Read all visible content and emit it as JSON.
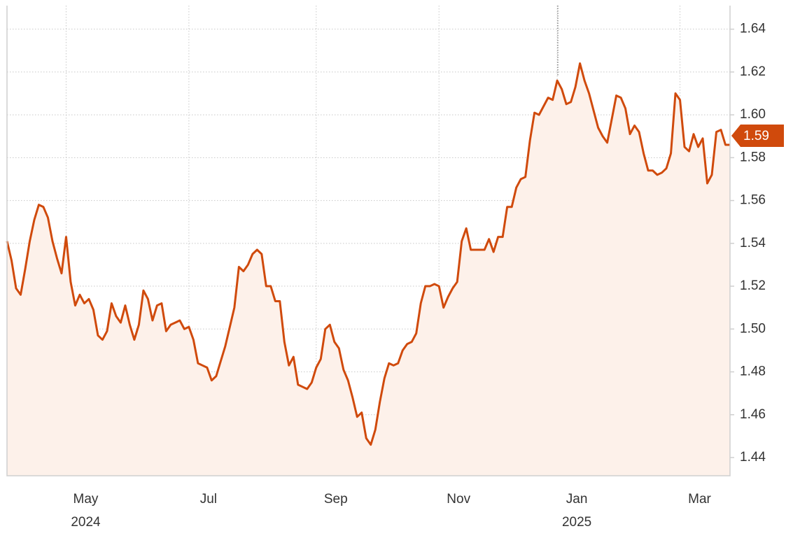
{
  "chart_data": {
    "type": "line",
    "color": "#d04a0c",
    "fill_color": "#fdf1ea",
    "grid": true,
    "current_label": "1.59",
    "categories": [
      null,
      null,
      null,
      null,
      null,
      null,
      null,
      null,
      null,
      null,
      null,
      null,
      null,
      "May",
      null,
      null,
      null,
      null,
      null,
      null,
      null,
      null,
      null,
      null,
      null,
      null,
      null,
      null,
      null,
      null,
      null,
      null,
      null,
      null,
      null,
      null,
      null,
      null,
      null,
      null,
      "Jul",
      null,
      null,
      null,
      null,
      null,
      null,
      null,
      null,
      null,
      null,
      null,
      null,
      null,
      null,
      null,
      null,
      null,
      null,
      null,
      null,
      null,
      null,
      null,
      null,
      null,
      null,
      null,
      "Sep",
      null,
      null,
      null,
      null,
      null,
      null,
      null,
      null,
      null,
      null,
      null,
      null,
      null,
      null,
      null,
      null,
      null,
      null,
      null,
      null,
      null,
      null,
      null,
      null,
      null,
      null,
      "Nov",
      null,
      null,
      null,
      null,
      null,
      null,
      null,
      null,
      null,
      null,
      null,
      null,
      null,
      null,
      null,
      null,
      null,
      null,
      null,
      null,
      null,
      null,
      null,
      null,
      null,
      "Jan",
      null,
      null,
      null,
      null,
      null,
      null,
      null,
      null,
      null,
      null,
      null,
      null,
      null,
      null,
      null,
      null,
      null,
      null,
      null,
      null,
      null,
      null,
      null,
      null,
      null,
      null,
      "Mar",
      null,
      null,
      null,
      null,
      null,
      null,
      null,
      null,
      null,
      null,
      null
    ],
    "category_years": [
      null,
      null,
      null,
      null,
      null,
      null,
      null,
      null,
      null,
      null,
      null,
      null,
      null,
      "2024",
      null,
      null,
      null,
      null,
      null,
      null,
      null,
      null,
      null,
      null,
      null,
      null,
      null,
      null,
      null,
      null,
      null,
      null,
      null,
      null,
      null,
      null,
      null,
      null,
      null,
      null,
      null,
      null,
      null,
      null,
      null,
      null,
      null,
      null,
      null,
      null,
      null,
      null,
      null,
      null,
      null,
      null,
      null,
      null,
      null,
      null,
      null,
      null,
      null,
      null,
      null,
      null,
      null,
      null,
      null,
      null,
      null,
      null,
      null,
      null,
      null,
      null,
      null,
      null,
      null,
      null,
      null,
      null,
      null,
      null,
      null,
      null,
      null,
      null,
      null,
      null,
      null,
      null,
      null,
      null,
      null,
      null,
      null,
      null,
      null,
      null,
      null,
      null,
      null,
      null,
      null,
      null,
      null,
      null,
      null,
      null,
      null,
      null,
      null,
      null,
      null,
      null,
      null,
      null,
      null,
      null,
      null,
      "2025",
      null,
      null,
      null,
      null,
      null,
      null,
      null,
      null,
      null,
      null,
      null,
      null,
      null,
      null,
      null,
      null,
      null,
      null,
      null,
      null,
      null,
      null,
      null,
      null,
      null,
      null,
      null,
      null,
      null,
      null,
      null,
      null,
      null,
      null,
      null,
      null,
      null,
      null
    ],
    "values": [
      1.541,
      1.532,
      1.519,
      1.516,
      1.528,
      1.541,
      1.551,
      1.558,
      1.557,
      1.552,
      1.541,
      1.533,
      1.526,
      1.543,
      1.522,
      1.511,
      1.516,
      1.512,
      1.514,
      1.509,
      1.497,
      1.495,
      1.499,
      1.512,
      1.506,
      1.503,
      1.511,
      1.502,
      1.495,
      1.502,
      1.518,
      1.514,
      1.504,
      1.511,
      1.512,
      1.499,
      1.502,
      1.503,
      1.504,
      1.5,
      1.501,
      1.495,
      1.484,
      1.483,
      1.482,
      1.476,
      1.478,
      1.485,
      1.492,
      1.501,
      1.51,
      1.529,
      1.527,
      1.53,
      1.535,
      1.537,
      1.535,
      1.52,
      1.52,
      1.513,
      1.513,
      1.494,
      1.483,
      1.487,
      1.474,
      1.473,
      1.472,
      1.475,
      1.482,
      1.486,
      1.5,
      1.502,
      1.494,
      1.491,
      1.481,
      1.476,
      1.468,
      1.459,
      1.461,
      1.449,
      1.446,
      1.453,
      1.466,
      1.477,
      1.484,
      1.483,
      1.484,
      1.49,
      1.493,
      1.494,
      1.498,
      1.512,
      1.52,
      1.52,
      1.521,
      1.52,
      1.51,
      1.515,
      1.519,
      1.522,
      1.541,
      1.547,
      1.537,
      1.537,
      1.537,
      1.537,
      1.542,
      1.536,
      1.543,
      1.543,
      1.557,
      1.557,
      1.566,
      1.57,
      1.571,
      1.588,
      1.601,
      1.6,
      1.604,
      1.608,
      1.607,
      1.616,
      1.612,
      1.605,
      1.606,
      1.613,
      1.624,
      1.616,
      1.61,
      1.602,
      1.594,
      1.59,
      1.587,
      1.598,
      1.609,
      1.608,
      1.603,
      1.591,
      1.595,
      1.592,
      1.582,
      1.574,
      1.574,
      1.572,
      1.573,
      1.575,
      1.582,
      1.61,
      1.607,
      1.585,
      1.583,
      1.591,
      1.585,
      1.589,
      1.568,
      1.572,
      1.592,
      1.593,
      1.586,
      1.586
    ],
    "ylim": [
      1.4315,
      1.651
    ],
    "yticks": [
      1.44,
      1.46,
      1.48,
      {
        "value": 1.5,
        "label": "1.50"
      },
      1.52,
      1.54,
      1.56,
      1.58,
      {
        "value": 1.6,
        "label": "1.60"
      },
      1.62,
      1.64
    ]
  }
}
